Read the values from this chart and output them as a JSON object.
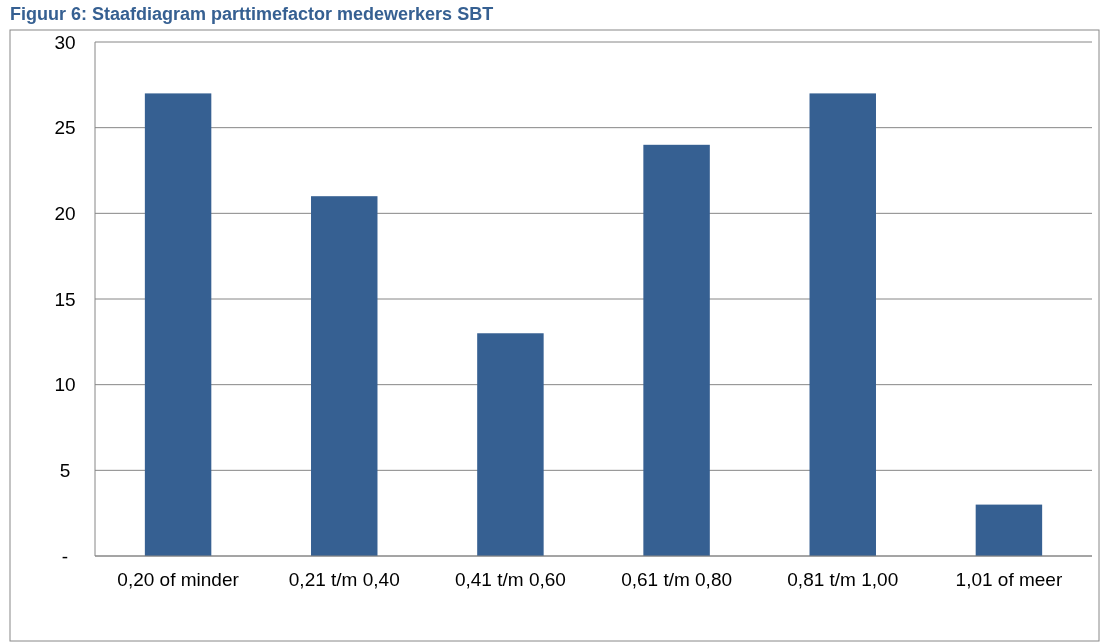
{
  "chart_data": {
    "type": "bar",
    "title": "Figuur 6: Staafdiagram parttimefactor medewerkers SBT",
    "categories": [
      "0,20 of minder",
      "0,21 t/m 0,40",
      "0,41 t/m 0,60",
      "0,61 t/m 0,80",
      "0,81 t/m 1,00",
      "1,01 of meer"
    ],
    "values": [
      27,
      21,
      13,
      24,
      27,
      3
    ],
    "color": "#366092",
    "ylim": [
      0,
      30
    ],
    "yticks": [
      {
        "value": 0,
        "label": "-"
      },
      5,
      10,
      15,
      20,
      25,
      30
    ],
    "grid": "y"
  }
}
